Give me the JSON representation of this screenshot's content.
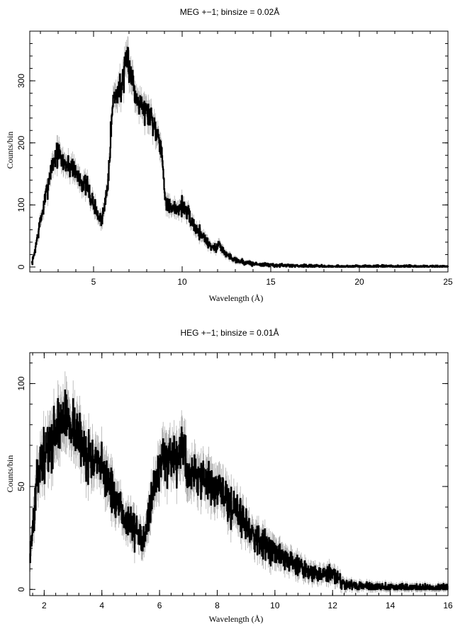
{
  "chart_data": [
    {
      "type": "line",
      "title": "MEG +−1; binsize = 0.02Å",
      "xlabel": "Wavelength (Å)",
      "ylabel": "Counts/bin",
      "xlim": [
        1.4,
        25
      ],
      "ylim": [
        -8,
        380
      ],
      "xticks": [
        5,
        10,
        15,
        20,
        25
      ],
      "xtick_labels": [
        "5",
        "10",
        "15",
        "20",
        "25"
      ],
      "yticks": [
        0,
        100,
        200,
        300
      ],
      "ytick_labels": [
        "0",
        "100",
        "200",
        "300"
      ],
      "line_color": "#000000",
      "errorbar_color": "#b0b0b0",
      "series": [
        {
          "x": [
            1.5,
            1.6,
            1.8,
            2.0,
            2.2,
            2.4,
            2.6,
            2.8,
            3.0,
            3.2,
            3.4,
            3.6,
            3.8,
            4.0,
            4.2,
            4.4,
            4.6,
            4.8,
            5.0,
            5.2,
            5.4,
            5.6,
            5.8,
            6.0,
            6.1,
            6.3,
            6.5,
            6.7,
            6.9,
            7.0,
            7.2,
            7.4,
            7.6,
            7.8,
            8.0,
            8.2,
            8.4,
            8.6,
            8.8,
            9.0,
            9.2,
            9.4,
            9.6,
            9.8,
            10.0,
            10.2,
            10.4,
            10.6,
            10.8,
            11.0,
            11.2,
            11.4,
            11.6,
            11.8,
            12.0,
            12.1,
            12.3,
            12.5,
            12.8,
            13.0,
            13.3,
            13.6,
            14.0,
            14.5,
            15.0,
            16.0,
            17.0,
            18.0,
            19.0,
            20.0,
            21.0,
            22.0,
            23.0,
            24.0,
            25.0
          ],
          "y": [
            5,
            15,
            45,
            75,
            100,
            130,
            160,
            175,
            185,
            170,
            168,
            160,
            165,
            150,
            145,
            135,
            130,
            115,
            100,
            85,
            75,
            95,
            140,
            230,
            270,
            280,
            290,
            300,
            340,
            325,
            300,
            270,
            275,
            255,
            250,
            245,
            230,
            215,
            200,
            120,
            100,
            90,
            95,
            95,
            100,
            90,
            80,
            70,
            60,
            55,
            50,
            40,
            35,
            30,
            32,
            40,
            25,
            20,
            15,
            12,
            9,
            7,
            5,
            4,
            3,
            2,
            2,
            1,
            1,
            1,
            1,
            1,
            1,
            1,
            1
          ]
        }
      ]
    },
    {
      "type": "line",
      "title": "HEG +−1; binsize = 0.01Å",
      "xlabel": "Wavelength (Å)",
      "ylabel": "Counts/bin",
      "xlim": [
        1.5,
        16
      ],
      "ylim": [
        -3,
        115
      ],
      "xticks": [
        2,
        4,
        6,
        8,
        10,
        12,
        14,
        16
      ],
      "xtick_labels": [
        "2",
        "4",
        "6",
        "8",
        "10",
        "12",
        "14",
        "16"
      ],
      "yticks": [
        0,
        50,
        100
      ],
      "ytick_labels": [
        "0",
        "50",
        "100"
      ],
      "line_color": "#000000",
      "errorbar_color": "#b0b0b0",
      "series": [
        {
          "x": [
            1.5,
            1.6,
            1.7,
            1.8,
            1.9,
            2.0,
            2.2,
            2.4,
            2.6,
            2.8,
            3.0,
            3.2,
            3.4,
            3.6,
            3.8,
            4.0,
            4.2,
            4.4,
            4.6,
            4.8,
            5.0,
            5.2,
            5.4,
            5.6,
            5.8,
            6.0,
            6.1,
            6.2,
            6.4,
            6.6,
            6.8,
            7.0,
            7.2,
            7.4,
            7.6,
            7.8,
            8.0,
            8.2,
            8.4,
            8.6,
            8.8,
            9.0,
            9.2,
            9.4,
            9.6,
            9.8,
            10.0,
            10.2,
            10.4,
            10.6,
            10.8,
            11.0,
            11.2,
            11.4,
            11.6,
            11.8,
            12.0,
            12.2,
            12.4,
            12.6,
            13.0,
            13.5,
            14.0,
            14.5,
            15.0,
            15.5,
            16.0
          ],
          "y": [
            18,
            30,
            45,
            58,
            62,
            65,
            70,
            78,
            82,
            84,
            80,
            74,
            68,
            64,
            60,
            58,
            55,
            45,
            38,
            35,
            32,
            28,
            24,
            35,
            50,
            58,
            70,
            62,
            60,
            62,
            70,
            55,
            58,
            55,
            52,
            50,
            48,
            46,
            42,
            38,
            36,
            32,
            28,
            25,
            22,
            20,
            18,
            16,
            14,
            13,
            12,
            10,
            9,
            8,
            8,
            7,
            8,
            5,
            3,
            2,
            1.5,
            1.2,
            1,
            1,
            0.8,
            0.6,
            0.5
          ]
        }
      ]
    }
  ]
}
